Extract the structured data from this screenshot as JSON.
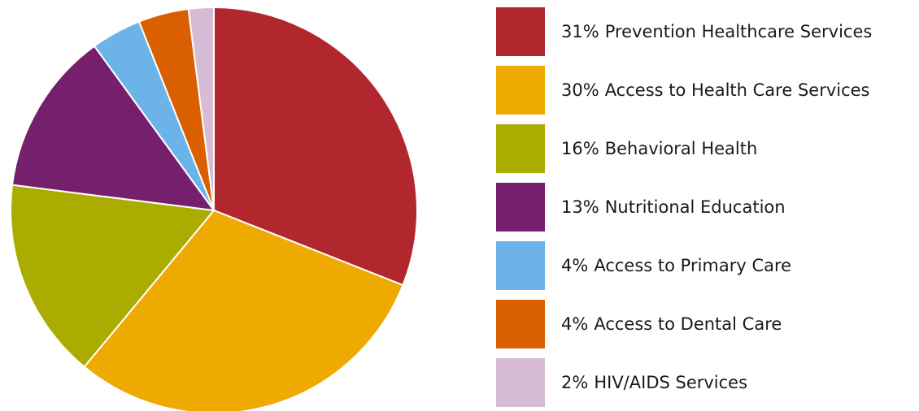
{
  "chart_data": {
    "type": "pie",
    "categories": [
      "Prevention Healthcare Services",
      "Access to Health Care Services",
      "Behavioral Health",
      "Nutritional Education",
      "Access to Primary Care",
      "Access to Dental Care",
      "HIV/AIDS Services"
    ],
    "values": [
      31,
      30,
      16,
      13,
      4,
      4,
      2
    ],
    "value_labels": [
      "31%",
      "30%",
      "16%",
      "13%",
      "4%",
      "4%",
      "2%"
    ],
    "colors": [
      "#b2262e",
      "#eeaa00",
      "#abac00",
      "#76206d",
      "#6bb3e8",
      "#d95f00",
      "#d6bcd4"
    ],
    "legend": "right"
  }
}
